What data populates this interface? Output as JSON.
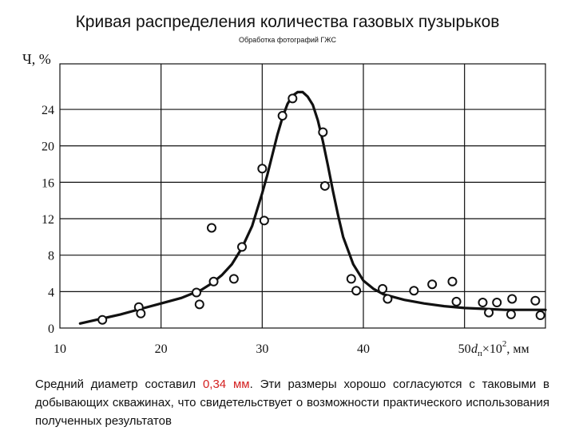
{
  "header": {
    "title": "Кривая распределения количества газовых пузырьков",
    "subtitle": "Обработка фотографий ГЖС"
  },
  "chart_data": {
    "type": "scatter",
    "ylabel": "Ч, %",
    "xlabel_main": "d",
    "xlabel_sub": "п",
    "xlabel_tail": "×10",
    "xlabel_sup": "2",
    "xlabel_unit": ", мм",
    "xlim": [
      10,
      58
    ],
    "ylim": [
      0,
      29
    ],
    "x_ticks": [
      10,
      20,
      30,
      40,
      50
    ],
    "y_ticks": [
      0,
      4,
      8,
      12,
      16,
      20,
      24
    ],
    "grid": true,
    "series": [
      {
        "type": "points",
        "x": [
          14.2,
          17.8,
          18,
          23.5,
          23.8,
          25,
          25.2,
          27.2,
          28,
          30,
          30.2,
          32,
          33,
          36,
          36.2,
          38.8,
          39.3,
          41.9,
          42.4,
          45,
          46.8,
          48.8,
          49.2,
          51.8,
          52.4,
          53.2,
          54.6,
          54.7,
          57,
          57.5
        ],
        "y": [
          0.9,
          2.3,
          1.6,
          3.9,
          2.6,
          11,
          5.1,
          5.4,
          8.9,
          17.5,
          11.8,
          23.3,
          25.2,
          21.5,
          15.6,
          5.4,
          4.1,
          4.3,
          3.2,
          4.1,
          4.8,
          5.1,
          2.9,
          2.8,
          1.7,
          2.8,
          1.5,
          3.2,
          3.0,
          1.4
        ]
      },
      {
        "type": "curve",
        "x": [
          12,
          14,
          16,
          18,
          20,
          22,
          24,
          25,
          26,
          27,
          28,
          29,
          30,
          30.5,
          31,
          31.5,
          32,
          32.5,
          33,
          33.5,
          34,
          34.5,
          35,
          35.5,
          36,
          36.5,
          37,
          37.5,
          38,
          39,
          40,
          41,
          42,
          44,
          46,
          48,
          50,
          52,
          54,
          56,
          58
        ],
        "y": [
          0.5,
          1.0,
          1.5,
          2.1,
          2.7,
          3.3,
          4.2,
          4.9,
          5.8,
          7.0,
          8.8,
          11.2,
          14.8,
          16.8,
          19.0,
          21.2,
          23.1,
          24.6,
          25.5,
          25.9,
          25.9,
          25.4,
          24.5,
          22.8,
          20.5,
          17.8,
          15.0,
          12.4,
          10.0,
          7.0,
          5.2,
          4.3,
          3.7,
          3.1,
          2.7,
          2.4,
          2.2,
          2.1,
          2.0,
          2.0,
          2.0
        ]
      }
    ]
  },
  "caption": {
    "part1": "Средний диаметр составил ",
    "value": "0,34 мм",
    "part2": ". Эти размеры хорошо согласуются с таковыми в добывающих скважинах, что свидетельствует о возможности практического использования полученных результатов"
  }
}
